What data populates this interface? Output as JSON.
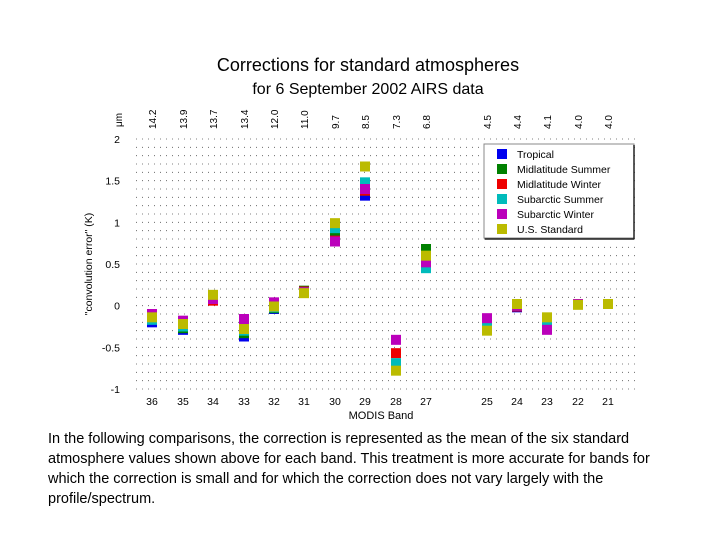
{
  "chart_data": {
    "type": "scatter",
    "title": "Corrections for standard atmospheres",
    "subtitle": "for 6 September 2002 AIRS data",
    "xlabel": "MODIS Band",
    "ylabel": "\"convolution error\" (K)",
    "top_axis_unit": "μm",
    "ylim": [
      -1,
      2
    ],
    "yticks": [
      "2",
      "1.5",
      "1",
      "0.5",
      "0",
      "-0.5",
      "-1"
    ],
    "ytick_values": [
      2,
      1.5,
      1,
      0.5,
      0,
      -0.5,
      -1
    ],
    "grid": "dotted",
    "legend_position": "top-right",
    "bands": [
      "36",
      "35",
      "34",
      "33",
      "32",
      "31",
      "30",
      "29",
      "28",
      "27",
      "25",
      "24",
      "23",
      "22",
      "21"
    ],
    "wavelengths": [
      "14.2",
      "13.9",
      "13.7",
      "13.4",
      "12.0",
      "11.0",
      "9.7",
      "8.5",
      "7.3",
      "6.8",
      "4.5",
      "4.4",
      "4.1",
      "4.0",
      "4.0"
    ],
    "series": [
      {
        "name": "Tropical",
        "color": "#0000ee",
        "values": [
          -0.2,
          -0.29,
          0.08,
          -0.37,
          -0.04,
          0.16,
          0.85,
          1.32,
          -0.7,
          0.56,
          -0.25,
          -0.02,
          -0.26,
          0.02,
          0.02
        ]
      },
      {
        "name": "Midlatitude Summer",
        "color": "#008000",
        "values": [
          -0.15,
          -0.27,
          0.1,
          -0.33,
          -0.03,
          0.18,
          0.9,
          1.38,
          -0.75,
          0.68,
          -0.22,
          -0.01,
          -0.22,
          0.02,
          0.02
        ]
      },
      {
        "name": "Midlatitude Winter",
        "color": "#ee0000",
        "values": [
          -0.12,
          -0.23,
          0.06,
          -0.2,
          0.03,
          0.17,
          0.78,
          1.38,
          -0.57,
          0.5,
          -0.2,
          -0.01,
          -0.15,
          0.02,
          0.02
        ]
      },
      {
        "name": "Subarctic Summer",
        "color": "#00bbbb",
        "values": [
          -0.17,
          -0.25,
          0.11,
          -0.3,
          -0.02,
          0.16,
          0.93,
          1.48,
          -0.69,
          0.45,
          -0.24,
          0.0,
          -0.2,
          0.02,
          0.02
        ]
      },
      {
        "name": "Subarctic Winter",
        "color": "#bb00bb",
        "values": [
          -0.1,
          -0.18,
          0.08,
          -0.16,
          0.04,
          0.16,
          0.77,
          1.4,
          -0.41,
          0.52,
          -0.15,
          0.0,
          -0.29,
          0.02,
          0.02
        ]
      },
      {
        "name": "U.S. Standard",
        "color": "#bbbb00",
        "values": [
          -0.14,
          -0.22,
          0.13,
          -0.28,
          -0.01,
          0.15,
          0.99,
          1.67,
          -0.78,
          0.6,
          -0.3,
          0.02,
          -0.14,
          0.01,
          0.02
        ]
      }
    ]
  },
  "caption": "In the following comparisons, the correction is represented as the mean of the six standard atmosphere values shown above for each band.  This treatment is more accurate for bands for which the correction is small and for which the correction does not vary largely with the profile/spectrum."
}
